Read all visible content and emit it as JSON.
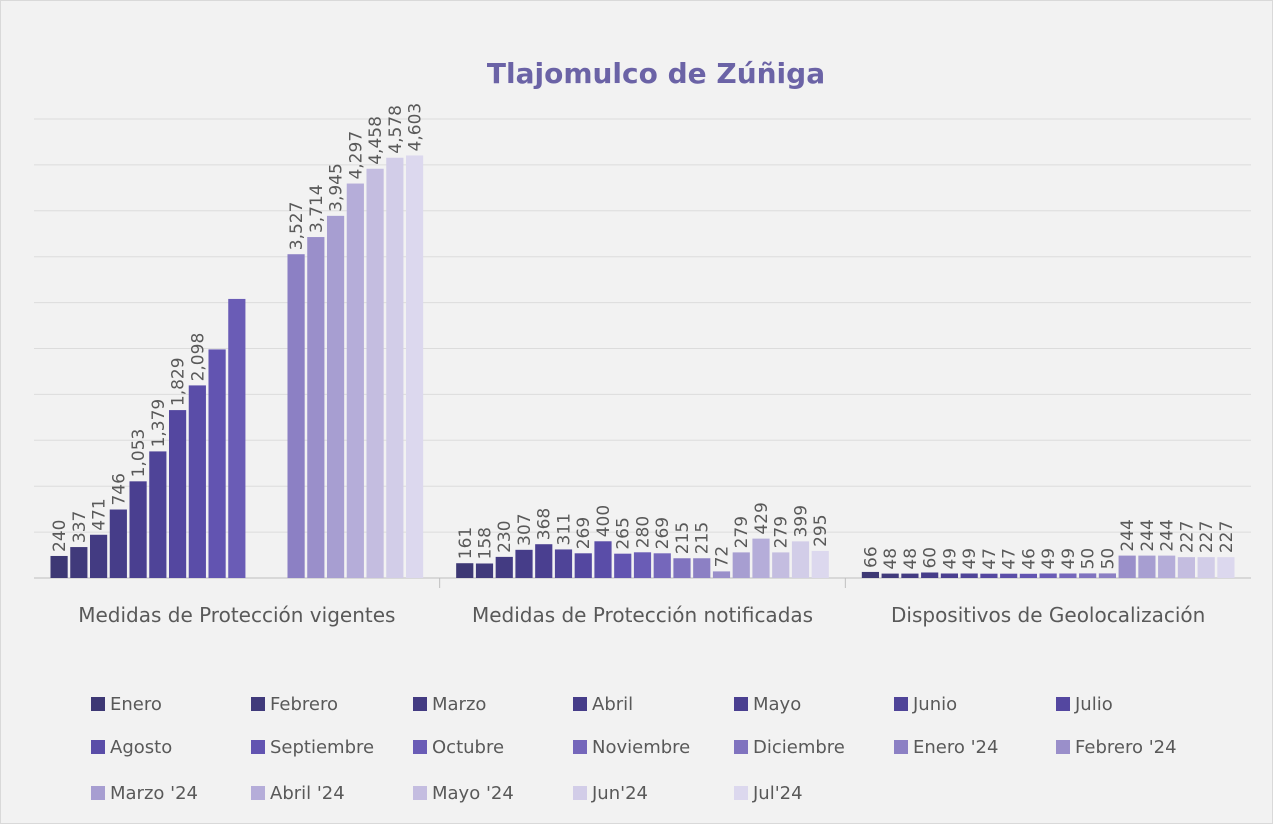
{
  "chart_data": {
    "type": "bar",
    "title": "Tlajomulco de Zúñiga",
    "categories": [
      "Medidas de Protección vigentes",
      "Medidas de Protección notificadas",
      "Dispositivos de Geolocalización"
    ],
    "ylim": [
      0,
      5000
    ],
    "yticks": [
      0,
      500,
      1000,
      1500,
      2000,
      2500,
      3000,
      3500,
      4000,
      4500,
      5000
    ],
    "grid": true,
    "series": [
      {
        "name": "Enero",
        "color": "#3d3874",
        "values": [
          240,
          161,
          66
        ]
      },
      {
        "name": "Febrero",
        "color": "#403a7b",
        "values": [
          337,
          158,
          48
        ]
      },
      {
        "name": "Marzo",
        "color": "#433b82",
        "values": [
          471,
          230,
          48
        ]
      },
      {
        "name": "Abril",
        "color": "#463d89",
        "values": [
          746,
          307,
          60
        ]
      },
      {
        "name": "Mayo",
        "color": "#4a3f90",
        "values": [
          1053,
          368,
          49
        ],
        "value_labels": [
          "1,053",
          "368",
          "49"
        ]
      },
      {
        "name": "Junio",
        "color": "#4f4498",
        "values": [
          1379,
          311,
          49
        ],
        "value_labels": [
          "1,379",
          "311",
          "49"
        ]
      },
      {
        "name": "Julio",
        "color": "#5447a0",
        "values": [
          1829,
          269,
          47
        ],
        "value_labels": [
          "1,829",
          "269",
          "47"
        ]
      },
      {
        "name": "Agosto",
        "color": "#5a4da8",
        "values": [
          2098,
          400,
          47
        ],
        "value_labels": [
          "2,098",
          "400",
          "47"
        ]
      },
      {
        "name": "Septiembre",
        "color": "#6254b1",
        "values": [
          2490,
          265,
          46
        ],
        "value_labels": [
          null,
          "265",
          "46"
        ]
      },
      {
        "name": "Octubre",
        "color": "#6a5cb6",
        "values": [
          3040,
          280,
          49
        ],
        "value_labels": [
          null,
          "280",
          "49"
        ]
      },
      {
        "name": "Noviembre",
        "color": "#7567bb",
        "values": [
          null,
          269,
          49
        ]
      },
      {
        "name": "Diciembre",
        "color": "#8073bf",
        "values": [
          null,
          215,
          50
        ]
      },
      {
        "name": "Enero '24",
        "color": "#8c80c4",
        "values": [
          3527,
          215,
          50
        ],
        "value_labels": [
          "3,527",
          "215",
          "50"
        ]
      },
      {
        "name": "Febrero '24",
        "color": "#9a8fca",
        "values": [
          3714,
          72,
          244
        ],
        "value_labels": [
          "3,714",
          "72",
          "244"
        ]
      },
      {
        "name": "Marzo '24",
        "color": "#a79ed1",
        "values": [
          3945,
          279,
          244
        ],
        "value_labels": [
          "3,945",
          "279",
          "244"
        ]
      },
      {
        "name": "Abril '24",
        "color": "#b5add9",
        "values": [
          4297,
          429,
          244
        ],
        "value_labels": [
          "4,297",
          "429",
          "244"
        ]
      },
      {
        "name": "Mayo '24",
        "color": "#c4bde0",
        "values": [
          4458,
          279,
          227
        ],
        "value_labels": [
          "4,458",
          "279",
          "227"
        ]
      },
      {
        "name": "Jun'24",
        "color": "#d2cde8",
        "values": [
          4578,
          399,
          227
        ],
        "value_labels": [
          "4,578",
          "399",
          "227"
        ]
      },
      {
        "name": "Jul'24",
        "color": "#dcd8ee",
        "values": [
          4603,
          295,
          227
        ],
        "value_labels": [
          "4,603",
          "295",
          "227"
        ]
      }
    ]
  }
}
